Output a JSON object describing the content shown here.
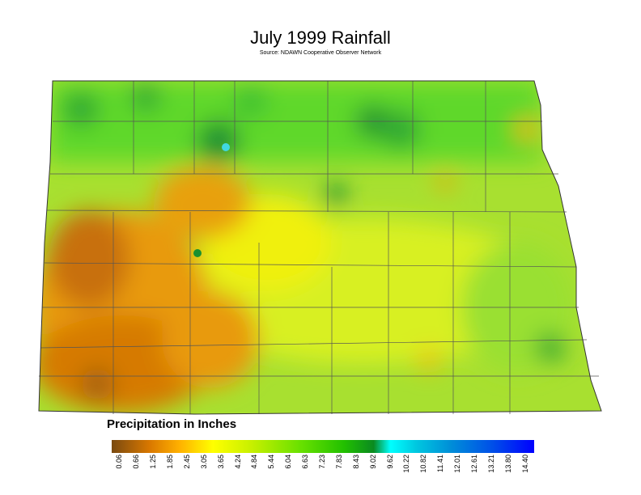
{
  "title": "July 1999 Rainfall",
  "source": "Source: NDAWN Cooperative Observer Network",
  "legend": {
    "title": "Precipitation in Inches",
    "ticks": [
      "0.06",
      "0.66",
      "1.25",
      "1.85",
      "2.45",
      "3.05",
      "3.65",
      "4.24",
      "4.84",
      "5.44",
      "6.04",
      "6.63",
      "7.23",
      "7.83",
      "8.43",
      "9.02",
      "9.62",
      "10.22",
      "10.82",
      "11.41",
      "12.01",
      "12.61",
      "13.21",
      "13.80",
      "14.40"
    ],
    "colors": [
      "#7a4a10",
      "#d97800",
      "#ffb000",
      "#ffff00",
      "#c8f000",
      "#66e000",
      "#22c000",
      "#0a8a20",
      "#00ffff",
      "#00c8e0",
      "#0090d8",
      "#0050e8",
      "#0000ff"
    ]
  },
  "map": {
    "region_color": "#9fe020",
    "wet_color": "#1a9a20",
    "dry_color": "#d67a00"
  }
}
